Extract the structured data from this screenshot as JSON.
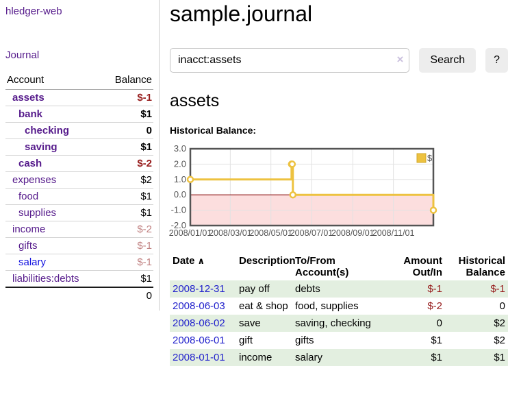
{
  "app": {
    "title": "hledger-web"
  },
  "sidebar": {
    "journal_link": "Journal",
    "accounts_table": {
      "headers": {
        "account": "Account",
        "balance": "Balance"
      },
      "rows": [
        {
          "name": "assets",
          "indent": 1,
          "balance": "$-1",
          "bold": true,
          "negative": "strong"
        },
        {
          "name": "bank",
          "indent": 2,
          "balance": "$1",
          "bold": true
        },
        {
          "name": "checking",
          "indent": 3,
          "balance": "0",
          "bold": true
        },
        {
          "name": "saving",
          "indent": 3,
          "balance": "$1",
          "bold": true
        },
        {
          "name": "cash",
          "indent": 2,
          "balance": "$-2",
          "bold": true,
          "negative": "strong"
        },
        {
          "name": "expenses",
          "indent": 1,
          "balance": "$2"
        },
        {
          "name": "food",
          "indent": 2,
          "balance": "$1"
        },
        {
          "name": "supplies",
          "indent": 2,
          "balance": "$1"
        },
        {
          "name": "income",
          "indent": 1,
          "balance": "$-2",
          "negative": "faded"
        },
        {
          "name": "gifts",
          "indent": 2,
          "balance": "$-1",
          "negative": "faded"
        },
        {
          "name": "salary",
          "indent": 2,
          "balance": "$-1",
          "negative": "faded",
          "link_style": "blue"
        },
        {
          "name": "liabilities:debts",
          "indent": 1,
          "balance": "$1"
        }
      ],
      "total": "0"
    }
  },
  "main": {
    "title": "sample.journal",
    "search": {
      "value": "inacct:assets",
      "clear_icon": "×",
      "search_button": "Search",
      "help_button": "?"
    },
    "account_heading": "assets",
    "chart_heading": "Historical Balance:"
  },
  "chart_data": {
    "type": "line",
    "title": "Historical Balance:",
    "step": true,
    "x_start": "2008-01-01",
    "x_end": "2008-12-31",
    "xtick_labels": [
      "2008/01/01",
      "2008/03/01",
      "2008/05/01",
      "2008/07/01",
      "2008/09/01",
      "2008/11/01"
    ],
    "xtick_dates": [
      "2008-01-01",
      "2008-03-01",
      "2008-05-01",
      "2008-07-01",
      "2008-09-01",
      "2008-11-01"
    ],
    "ytick_labels": [
      "3.0",
      "2.0",
      "1.0",
      "0.0",
      "-1.0",
      "-2.0"
    ],
    "yticks": [
      3,
      2,
      1,
      0,
      -1,
      -2
    ],
    "ylim": [
      -2,
      3
    ],
    "grid": true,
    "legend_position": "top-right",
    "series": [
      {
        "name": "$",
        "color": "#edc240",
        "points": [
          [
            "2008-01-01",
            1
          ],
          [
            "2008-06-01",
            2
          ],
          [
            "2008-06-02",
            2
          ],
          [
            "2008-06-03",
            0
          ],
          [
            "2008-12-31",
            -1
          ]
        ]
      }
    ],
    "negative_region": {
      "from": -2,
      "to": 0,
      "fill": "#fcdede",
      "zero_line_color": "#8b1414"
    },
    "colors": {
      "border": "#545454",
      "grid": "#e2e2e2",
      "tick_text": "#545454",
      "marker_fill": "#ffffff"
    }
  },
  "register_table": {
    "headers": [
      "Date",
      "Description",
      "To/From\nAccount(s)",
      "Amount\nOut/In",
      "Historical\nBalance"
    ],
    "sort_icon": "∧",
    "rows": [
      {
        "date": "2008-12-31",
        "description": "pay off",
        "accounts": "debts",
        "amount": "$-1",
        "balance": "$-1",
        "amount_neg": true,
        "balance_neg": true,
        "striped": true
      },
      {
        "date": "2008-06-03",
        "description": "eat & shop",
        "accounts": "food, supplies",
        "amount": "$-2",
        "balance": "0",
        "amount_neg": true,
        "balance_neg": false,
        "striped": false
      },
      {
        "date": "2008-06-02",
        "description": "save",
        "accounts": "saving, checking",
        "amount": "0",
        "balance": "$2",
        "amount_neg": false,
        "balance_neg": false,
        "striped": true
      },
      {
        "date": "2008-06-01",
        "description": "gift",
        "accounts": "gifts",
        "amount": "$1",
        "balance": "$2",
        "amount_neg": false,
        "balance_neg": false,
        "striped": false
      },
      {
        "date": "2008-01-01",
        "description": "income",
        "accounts": "salary",
        "amount": "$1",
        "balance": "$1",
        "amount_neg": false,
        "balance_neg": false,
        "striped": true
      }
    ]
  }
}
